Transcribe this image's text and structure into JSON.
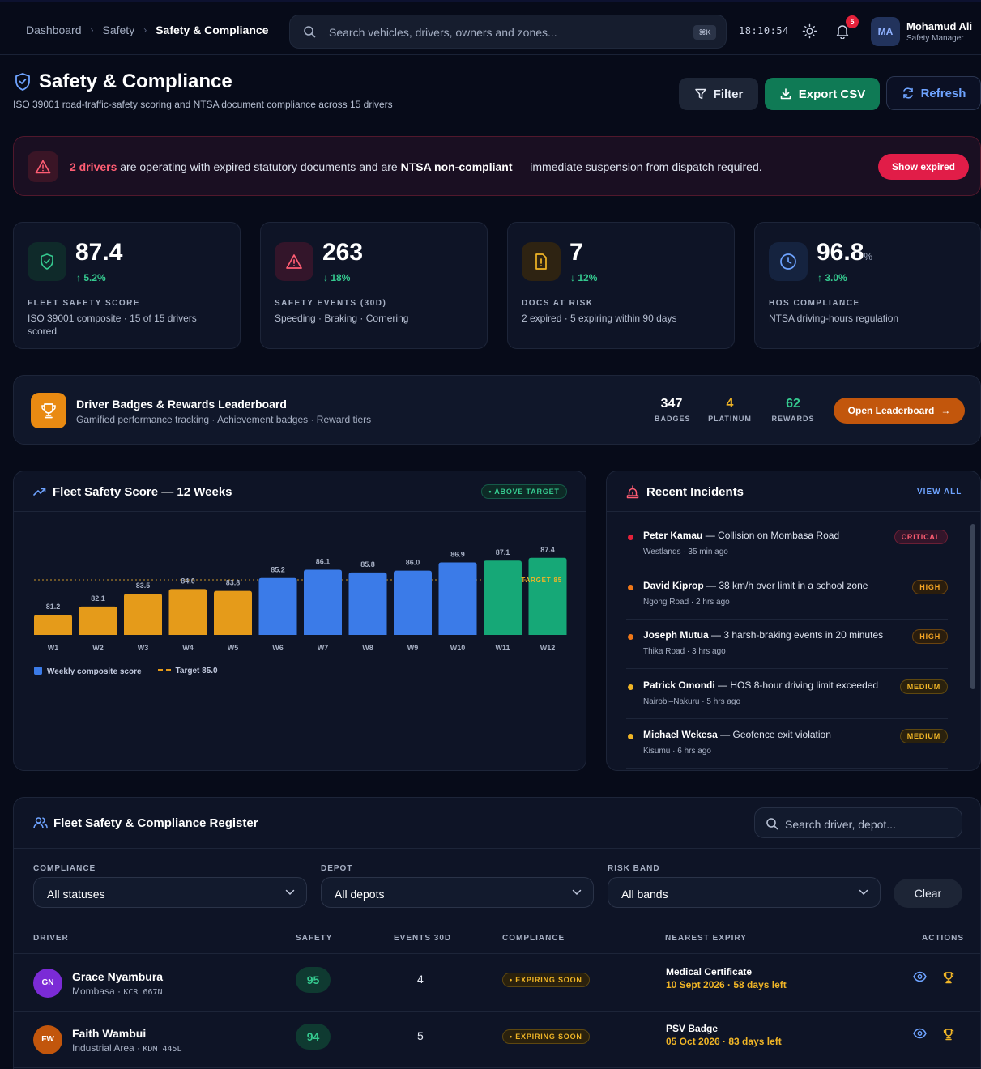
{
  "breadcrumb": [
    "Dashboard",
    "Safety",
    "Safety & Compliance"
  ],
  "search": {
    "placeholder": "Search vehicles, drivers, owners and zones...",
    "shortcut": "⌘K"
  },
  "clock": "18:10:54",
  "notifications": {
    "count": "5"
  },
  "user": {
    "initials": "MA",
    "name": "Mohamud Ali",
    "role": "Safety Manager"
  },
  "page": {
    "title": "Safety & Compliance",
    "subtitle": "ISO 39001 road-traffic-safety scoring and NTSA document compliance across 15 drivers"
  },
  "actions": {
    "filter": "Filter",
    "export": "Export CSV",
    "refresh": "Refresh"
  },
  "alert": {
    "count_text": "2 drivers",
    "text_1": " are operating with expired statutory documents and are ",
    "bold": "NTSA non-compliant",
    "text_2": " — immediate suspension from dispatch required.",
    "button": "Show expired"
  },
  "kpis": [
    {
      "value": "87.4",
      "unit": "",
      "delta": "5.2%",
      "direction": "up",
      "label": "FLEET SAFETY SCORE",
      "desc": "ISO 39001 composite · 15 of 15 drivers scored",
      "icon": "shield-check-icon"
    },
    {
      "value": "263",
      "unit": "",
      "delta": "18%",
      "direction": "down",
      "label": "SAFETY EVENTS (30D)",
      "desc": "Speeding · Braking · Cornering",
      "icon": "warning-triangle-icon"
    },
    {
      "value": "7",
      "unit": "",
      "delta": "12%",
      "direction": "down",
      "label": "DOCS AT RISK",
      "desc": "2 expired · 5 expiring within 90 days",
      "icon": "document-alert-icon"
    },
    {
      "value": "96.8",
      "unit": "%",
      "delta": "3.0%",
      "direction": "up",
      "label": "HOS COMPLIANCE",
      "desc": "NTSA driving-hours regulation",
      "icon": "clock-icon"
    }
  ],
  "leaderboard": {
    "title": "Driver Badges & Rewards Leaderboard",
    "subtitle": "Gamified performance tracking · Achievement badges · Reward tiers",
    "stats": [
      {
        "value": "347",
        "label": "BADGES",
        "color": "#ffffff"
      },
      {
        "value": "4",
        "label": "PLATINUM",
        "color": "#f0b526"
      },
      {
        "value": "62",
        "label": "REWARDS",
        "color": "#35c98f"
      }
    ],
    "button": "Open Leaderboard"
  },
  "chart": {
    "title": "Fleet Safety Score — 12 Weeks",
    "pill": "• ABOVE TARGET",
    "legend_series": "Weekly composite score",
    "legend_target": "Target 85.0"
  },
  "chart_data": {
    "type": "bar",
    "categories": [
      "W1",
      "W2",
      "W3",
      "W4",
      "W5",
      "W6",
      "W7",
      "W8",
      "W9",
      "W10",
      "W11",
      "W12"
    ],
    "values": [
      81.2,
      82.1,
      83.5,
      84.0,
      83.8,
      85.2,
      86.1,
      85.8,
      86.0,
      86.9,
      87.1,
      87.4
    ],
    "target": 85.0,
    "target_label": "TARGET 85",
    "colors": {
      "below": "#e59b1a",
      "above": "#3b7be8",
      "top": "#16a877"
    },
    "ylim": [
      79,
      88
    ]
  },
  "incidents": {
    "title": "Recent Incidents",
    "view_all": "VIEW ALL",
    "items": [
      {
        "driver": "Peter Kamau",
        "text": " — Collision on Mombasa Road",
        "meta": "Westlands · 35 min ago",
        "severity": "CRITICAL",
        "color": "#e5213a"
      },
      {
        "driver": "David Kiprop",
        "text": " — 38 km/h over limit in a school zone",
        "meta": "Ngong Road · 2 hrs ago",
        "severity": "HIGH",
        "color": "#f07818"
      },
      {
        "driver": "Joseph Mutua",
        "text": " — 3 harsh-braking events in 20 minutes",
        "meta": "Thika Road · 3 hrs ago",
        "severity": "HIGH",
        "color": "#f07818"
      },
      {
        "driver": "Patrick Omondi",
        "text": " — HOS 8-hour driving limit exceeded",
        "meta": "Nairobi–Nakuru · 5 hrs ago",
        "severity": "MEDIUM",
        "color": "#f0b526"
      },
      {
        "driver": "Michael Wekesa",
        "text": " — Geofence exit violation",
        "meta": "Kisumu · 6 hrs ago",
        "severity": "MEDIUM",
        "color": "#f0b526"
      }
    ]
  },
  "register": {
    "title": "Fleet Safety & Compliance Register",
    "search_placeholder": "Search driver, depot...",
    "filters": [
      {
        "label": "COMPLIANCE",
        "value": "All statuses"
      },
      {
        "label": "DEPOT",
        "value": "All depots"
      },
      {
        "label": "RISK BAND",
        "value": "All bands"
      }
    ],
    "clear": "Clear",
    "columns": [
      "DRIVER",
      "SAFETY",
      "EVENTS 30D",
      "COMPLIANCE",
      "NEAREST EXPIRY",
      "ACTIONS"
    ],
    "rows": [
      {
        "initials": "GN",
        "avatar_color": "#7b2bd6",
        "name": "Grace Nyambura",
        "depot": "Mombasa · ",
        "plate": "KCR 667N",
        "safety": "95",
        "events": "4",
        "compliance": "• EXPIRING SOON",
        "expiry_doc": "Medical Certificate",
        "expiry_value": "10 Sept 2026 · 58 days left"
      },
      {
        "initials": "FW",
        "avatar_color": "#c2560c",
        "name": "Faith Wambui",
        "depot": "Industrial Area · ",
        "plate": "KDM 445L",
        "safety": "94",
        "events": "5",
        "compliance": "• EXPIRING SOON",
        "expiry_doc": "PSV Badge",
        "expiry_value": "05 Oct 2026 · 83 days left"
      }
    ]
  }
}
